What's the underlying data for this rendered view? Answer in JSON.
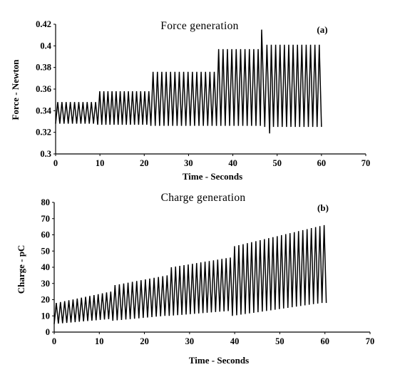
{
  "chart_data": [
    {
      "type": "line",
      "panel_label": "(a)",
      "title": "Force generation",
      "xlabel": "Time - Seconds",
      "ylabel": "Force - Newton",
      "xlim": [
        0,
        70
      ],
      "ylim": [
        0.3,
        0.42
      ],
      "xticks": [
        0,
        10,
        20,
        30,
        40,
        50,
        60,
        70
      ],
      "xtick_labels": [
        "0",
        "10",
        "20",
        "30",
        "40",
        "50",
        "60",
        "70"
      ],
      "yticks": [
        0.3,
        0.32,
        0.34,
        0.36,
        0.38,
        0.4,
        0.42
      ],
      "ytick_labels": [
        "0.3",
        "0.32",
        "0.34",
        "0.36",
        "0.38",
        "0.4",
        "0.42"
      ],
      "grid": false,
      "legend": "none",
      "line_color": "#000000",
      "series": [
        {
          "period": 0.96,
          "segments": [
            {
              "x_start": 0,
              "x_end": 9.5,
              "min": 0.328,
              "max": 0.348
            },
            {
              "x_start": 9.5,
              "x_end": 21.5,
              "min": 0.327,
              "max": 0.358
            },
            {
              "x_start": 21.5,
              "x_end": 36.3,
              "min": 0.326,
              "max": 0.376
            },
            {
              "x_start": 36.3,
              "x_end": 47.2,
              "min": 0.326,
              "max": 0.397
            },
            {
              "x_start": 47.2,
              "x_end": 60,
              "min": 0.325,
              "max": 0.401
            }
          ],
          "spikes": [
            {
              "x": 46.5,
              "y": 0.415
            },
            {
              "x": 48.3,
              "y": 0.319
            }
          ]
        }
      ]
    },
    {
      "type": "line",
      "panel_label": "(b)",
      "title": "Charge generation",
      "xlabel": "Time - Seconds",
      "ylabel": "Charge - pC",
      "xlim": [
        0,
        70
      ],
      "ylim": [
        0,
        80
      ],
      "xticks": [
        0,
        10,
        20,
        30,
        40,
        50,
        60,
        70
      ],
      "xtick_labels": [
        "0",
        "10",
        "20",
        "30",
        "40",
        "50",
        "60",
        "70"
      ],
      "yticks": [
        0,
        10,
        20,
        30,
        40,
        50,
        60,
        70,
        80
      ],
      "ytick_labels": [
        "0",
        "10",
        "20",
        "30",
        "40",
        "50",
        "60",
        "70",
        "80"
      ],
      "grid": false,
      "legend": "none",
      "line_color": "#000000",
      "series": [
        {
          "period": 0.95,
          "segments": [
            {
              "x_start": 0,
              "x_end": 13,
              "min_start": 5,
              "min_end": 8,
              "max_start": 18,
              "max_end": 25
            },
            {
              "x_start": 13,
              "x_end": 25.5,
              "min_start": 7,
              "min_end": 10,
              "max_start": 29,
              "max_end": 35
            },
            {
              "x_start": 25.5,
              "x_end": 39.5,
              "min_start": 10,
              "min_end": 13,
              "max_start": 40,
              "max_end": 46
            },
            {
              "x_start": 39.5,
              "x_end": 60.3,
              "min_start": 10,
              "min_end": 18,
              "max_start": 53,
              "max_end": 66
            }
          ]
        }
      ]
    }
  ]
}
